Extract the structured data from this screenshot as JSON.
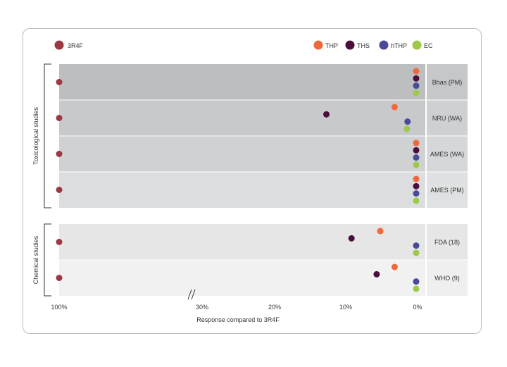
{
  "chart_data": {
    "type": "scatter",
    "xlabel": "Response compared to 3R4F",
    "x_ticks": [
      "100%",
      "30%",
      "20%",
      "10%",
      "0%"
    ],
    "legend": {
      "reference": {
        "name": "3R4F",
        "color": "#9b3842"
      },
      "products": [
        {
          "name": "THP",
          "color": "#ee6a3d"
        },
        {
          "name": "THS",
          "color": "#4a0e3c"
        },
        {
          "name": "hTHP",
          "color": "#4a4a99"
        },
        {
          "name": "EC",
          "color": "#9cc947"
        }
      ]
    },
    "groups": [
      {
        "name": "Toxicological studies",
        "rows": [
          {
            "label": "Bhas (PM)",
            "values": {
              "3R4F": 100,
              "THP": 0,
              "THS": 0,
              "hTHP": 0,
              "EC": 0
            }
          },
          {
            "label": "NRU (WA)",
            "values": {
              "3R4F": 100,
              "THP": 3,
              "THS": 12.5,
              "hTHP": 1.2,
              "EC": 1.3
            }
          },
          {
            "label": "AMES (WA)",
            "values": {
              "3R4F": 100,
              "THP": 0,
              "THS": 0,
              "hTHP": 0,
              "EC": 0
            }
          },
          {
            "label": "AMES (PM)",
            "values": {
              "3R4F": 100,
              "THP": 0,
              "THS": 0,
              "hTHP": 0,
              "EC": 0
            }
          }
        ]
      },
      {
        "name": "Chemical studies",
        "rows": [
          {
            "label": "FDA (18)",
            "values": {
              "3R4F": 100,
              "THP": 5,
              "THS": 9,
              "hTHP": 0,
              "EC": 0
            }
          },
          {
            "label": "WHO (9)",
            "values": {
              "3R4F": 100,
              "THP": 3,
              "THS": 5.5,
              "hTHP": 0,
              "EC": 0
            }
          }
        ]
      }
    ]
  }
}
